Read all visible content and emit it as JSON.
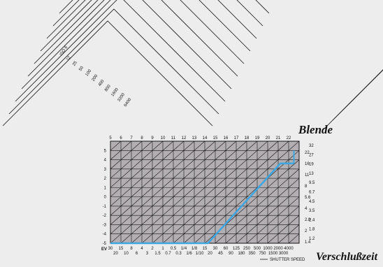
{
  "chart_data": {
    "type": "line",
    "title": "",
    "legend_text": "SHUTTER SPEED",
    "ev_label": "EV",
    "y_ticks": [
      "-5",
      "-4",
      "-3",
      "-2",
      "-1",
      "0",
      "1",
      "2",
      "3",
      "4",
      "5"
    ],
    "top_ticks": [
      "5",
      "6",
      "7",
      "8",
      "9",
      "10",
      "11",
      "12",
      "13",
      "14",
      "15",
      "16",
      "17",
      "18",
      "19",
      "20",
      "21",
      "22"
    ],
    "bottom_ticks_row1": [
      "30",
      "15",
      "8",
      "4",
      "2",
      "1",
      "0.5",
      "1/4",
      "1/8",
      "15",
      "30",
      "60",
      "125",
      "250",
      "500",
      "1000",
      "2000",
      "4000"
    ],
    "bottom_ticks_row2": [
      "20",
      "10",
      "6",
      "3",
      "1.5",
      "0.7",
      "0.3",
      "1/6",
      "1/10",
      "20",
      "45",
      "90",
      "180",
      "350",
      "750",
      "1500",
      "3000"
    ],
    "right_ticks_row1": [
      "22",
      "16",
      "11",
      "8",
      "5.6",
      "4",
      "2.8",
      "2",
      "1.4"
    ],
    "right_ticks_row2": [
      "32",
      "27",
      "19",
      "13",
      "9.5",
      "6.7",
      "4.5",
      "3.5",
      "2.4",
      "1.8",
      "1.2"
    ],
    "iso_labels": [
      "ISO 6",
      "12",
      "25",
      "50",
      "100",
      "200",
      "400",
      "800",
      "1600",
      "3200",
      "6400"
    ],
    "program_line": {
      "color": "#3fa6e0",
      "x": [
        5,
        14.3,
        21.2,
        22.5
      ],
      "y": [
        -5,
        -5,
        3.6,
        3.6
      ]
    },
    "axis_titles": {
      "aperture": "Blende",
      "shutter": "Verschlußzeit"
    }
  },
  "colors": {
    "grid_fill": "#b2aeb2",
    "line": "#151515",
    "accent": "#3fa6e0",
    "background": "#ededed"
  }
}
